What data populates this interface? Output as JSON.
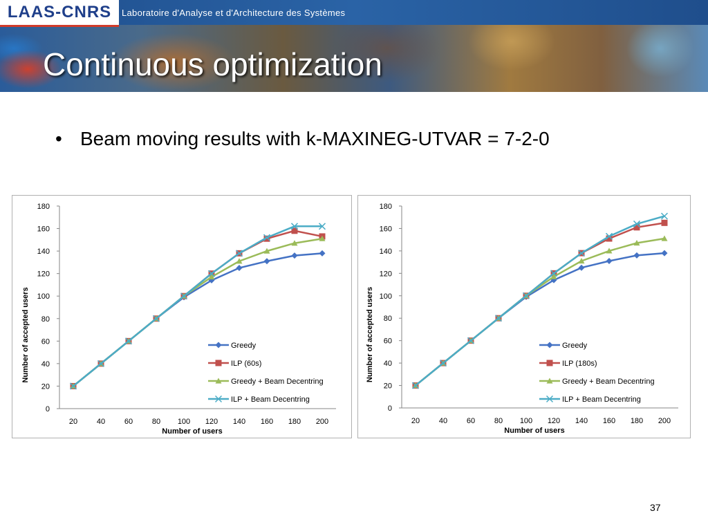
{
  "header": {
    "logo_text": "LAAS-CNRS",
    "lab_name": "Laboratoire d'Analyse et d'Architecture des Systèmes",
    "slide_title": "Continuous optimization"
  },
  "bullet": {
    "symbol": "•",
    "text": "Beam moving results with k-MAXINEG-UTVAR = 7-2-0"
  },
  "page_number": "37",
  "colors": {
    "greedy": "#4472C4",
    "ilp": "#C0504D",
    "greedy_beam": "#9BBB59",
    "ilp_beam": "#4BACC6"
  },
  "chart_data": [
    {
      "type": "line",
      "xlabel": "Number of users",
      "ylabel": "Number of accepted users",
      "x": [
        20,
        40,
        60,
        80,
        100,
        120,
        140,
        160,
        180,
        200
      ],
      "ylim": [
        0,
        180
      ],
      "yticks": [
        0,
        20,
        40,
        60,
        80,
        100,
        120,
        140,
        160,
        180
      ],
      "grid": false,
      "legend_position": "right",
      "series": [
        {
          "name": "Greedy",
          "color": "#4472C4",
          "marker": "diamond",
          "values": [
            20,
            40,
            60,
            80,
            99,
            114,
            125,
            131,
            136,
            138
          ]
        },
        {
          "name": "ILP (60s)",
          "color": "#C0504D",
          "marker": "square",
          "values": [
            20,
            40,
            60,
            80,
            100,
            120,
            138,
            151,
            158,
            153
          ]
        },
        {
          "name": "Greedy + Beam Decentring",
          "color": "#9BBB59",
          "marker": "triangle",
          "values": [
            20,
            40,
            60,
            80,
            100,
            117,
            131,
            140,
            147,
            151
          ]
        },
        {
          "name": "ILP + Beam Decentring",
          "color": "#4BACC6",
          "marker": "x",
          "values": [
            20,
            40,
            60,
            80,
            100,
            120,
            138,
            152,
            162,
            162
          ]
        }
      ]
    },
    {
      "type": "line",
      "xlabel": "Number of users",
      "ylabel": "Number of accepted users",
      "x": [
        20,
        40,
        60,
        80,
        100,
        120,
        140,
        160,
        180,
        200
      ],
      "ylim": [
        0,
        180
      ],
      "yticks": [
        0,
        20,
        40,
        60,
        80,
        100,
        120,
        140,
        160,
        180
      ],
      "grid": false,
      "legend_position": "right",
      "series": [
        {
          "name": "Greedy",
          "color": "#4472C4",
          "marker": "diamond",
          "values": [
            20,
            40,
            60,
            80,
            99,
            114,
            125,
            131,
            136,
            138
          ]
        },
        {
          "name": "ILP (180s)",
          "color": "#C0504D",
          "marker": "square",
          "values": [
            20,
            40,
            60,
            80,
            100,
            120,
            138,
            151,
            161,
            165
          ]
        },
        {
          "name": "Greedy + Beam Decentring",
          "color": "#9BBB59",
          "marker": "triangle",
          "values": [
            20,
            40,
            60,
            80,
            100,
            117,
            131,
            140,
            147,
            151
          ]
        },
        {
          "name": "ILP + Beam Decentring",
          "color": "#4BACC6",
          "marker": "x",
          "values": [
            20,
            40,
            60,
            80,
            100,
            120,
            138,
            153,
            164,
            171
          ]
        }
      ]
    }
  ]
}
